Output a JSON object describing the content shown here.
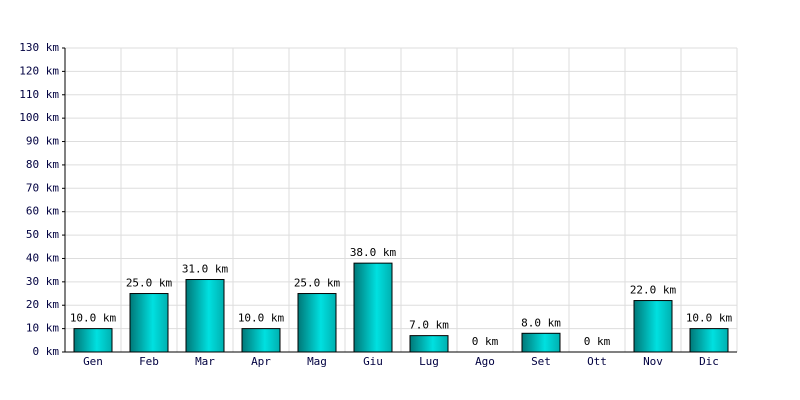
{
  "chart_data": {
    "type": "bar",
    "categories": [
      "Gen",
      "Feb",
      "Mar",
      "Apr",
      "Mag",
      "Giu",
      "Lug",
      "Ago",
      "Set",
      "Ott",
      "Nov",
      "Dic"
    ],
    "values": [
      10,
      25,
      31,
      10,
      25,
      38,
      7,
      0,
      8,
      0,
      22,
      10
    ],
    "value_labels": [
      "10.0 km",
      "25.0 km",
      "31.0 km",
      "10.0 km",
      "25.0 km",
      "38.0 km",
      "7.0 km",
      "0 km",
      "8.0 km",
      "0 km",
      "22.0 km",
      "10.0 km"
    ],
    "color": "#00e0e0",
    "ylim": [
      0,
      130
    ],
    "yticks": [
      {
        "value": 0,
        "label": "0 km"
      },
      {
        "value": 10,
        "label": "10 km"
      },
      {
        "value": 20,
        "label": "20 km"
      },
      {
        "value": 30,
        "label": "30 km"
      },
      {
        "value": 40,
        "label": "40 km"
      },
      {
        "value": 50,
        "label": "50 km"
      },
      {
        "value": 60,
        "label": "60 km"
      },
      {
        "value": 70,
        "label": "70 km"
      },
      {
        "value": 80,
        "label": "80 km"
      },
      {
        "value": 90,
        "label": "90 km"
      },
      {
        "value": 100,
        "label": "100 km"
      },
      {
        "value": 110,
        "label": "110 km"
      },
      {
        "value": 120,
        "label": "120 km"
      },
      {
        "value": 130,
        "label": "130 km"
      }
    ],
    "grid": true
  }
}
